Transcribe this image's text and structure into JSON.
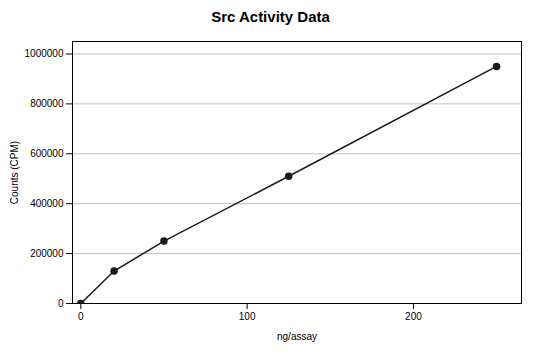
{
  "chart_data": {
    "type": "line",
    "title": "Src Activity Data",
    "xlabel": "ng/assay",
    "ylabel": "Counts (CPM)",
    "x": [
      0,
      20,
      50,
      125,
      250
    ],
    "values": [
      0,
      130000,
      250000,
      510000,
      950000
    ],
    "color": "#1a1a1a",
    "marker": "circle",
    "xlim": [
      -5,
      265
    ],
    "xticks": [
      0,
      100,
      200
    ],
    "ylim": [
      0,
      1050000
    ],
    "yticks": [
      0,
      200000,
      400000,
      600000,
      800000,
      1000000
    ],
    "grid": "y"
  }
}
